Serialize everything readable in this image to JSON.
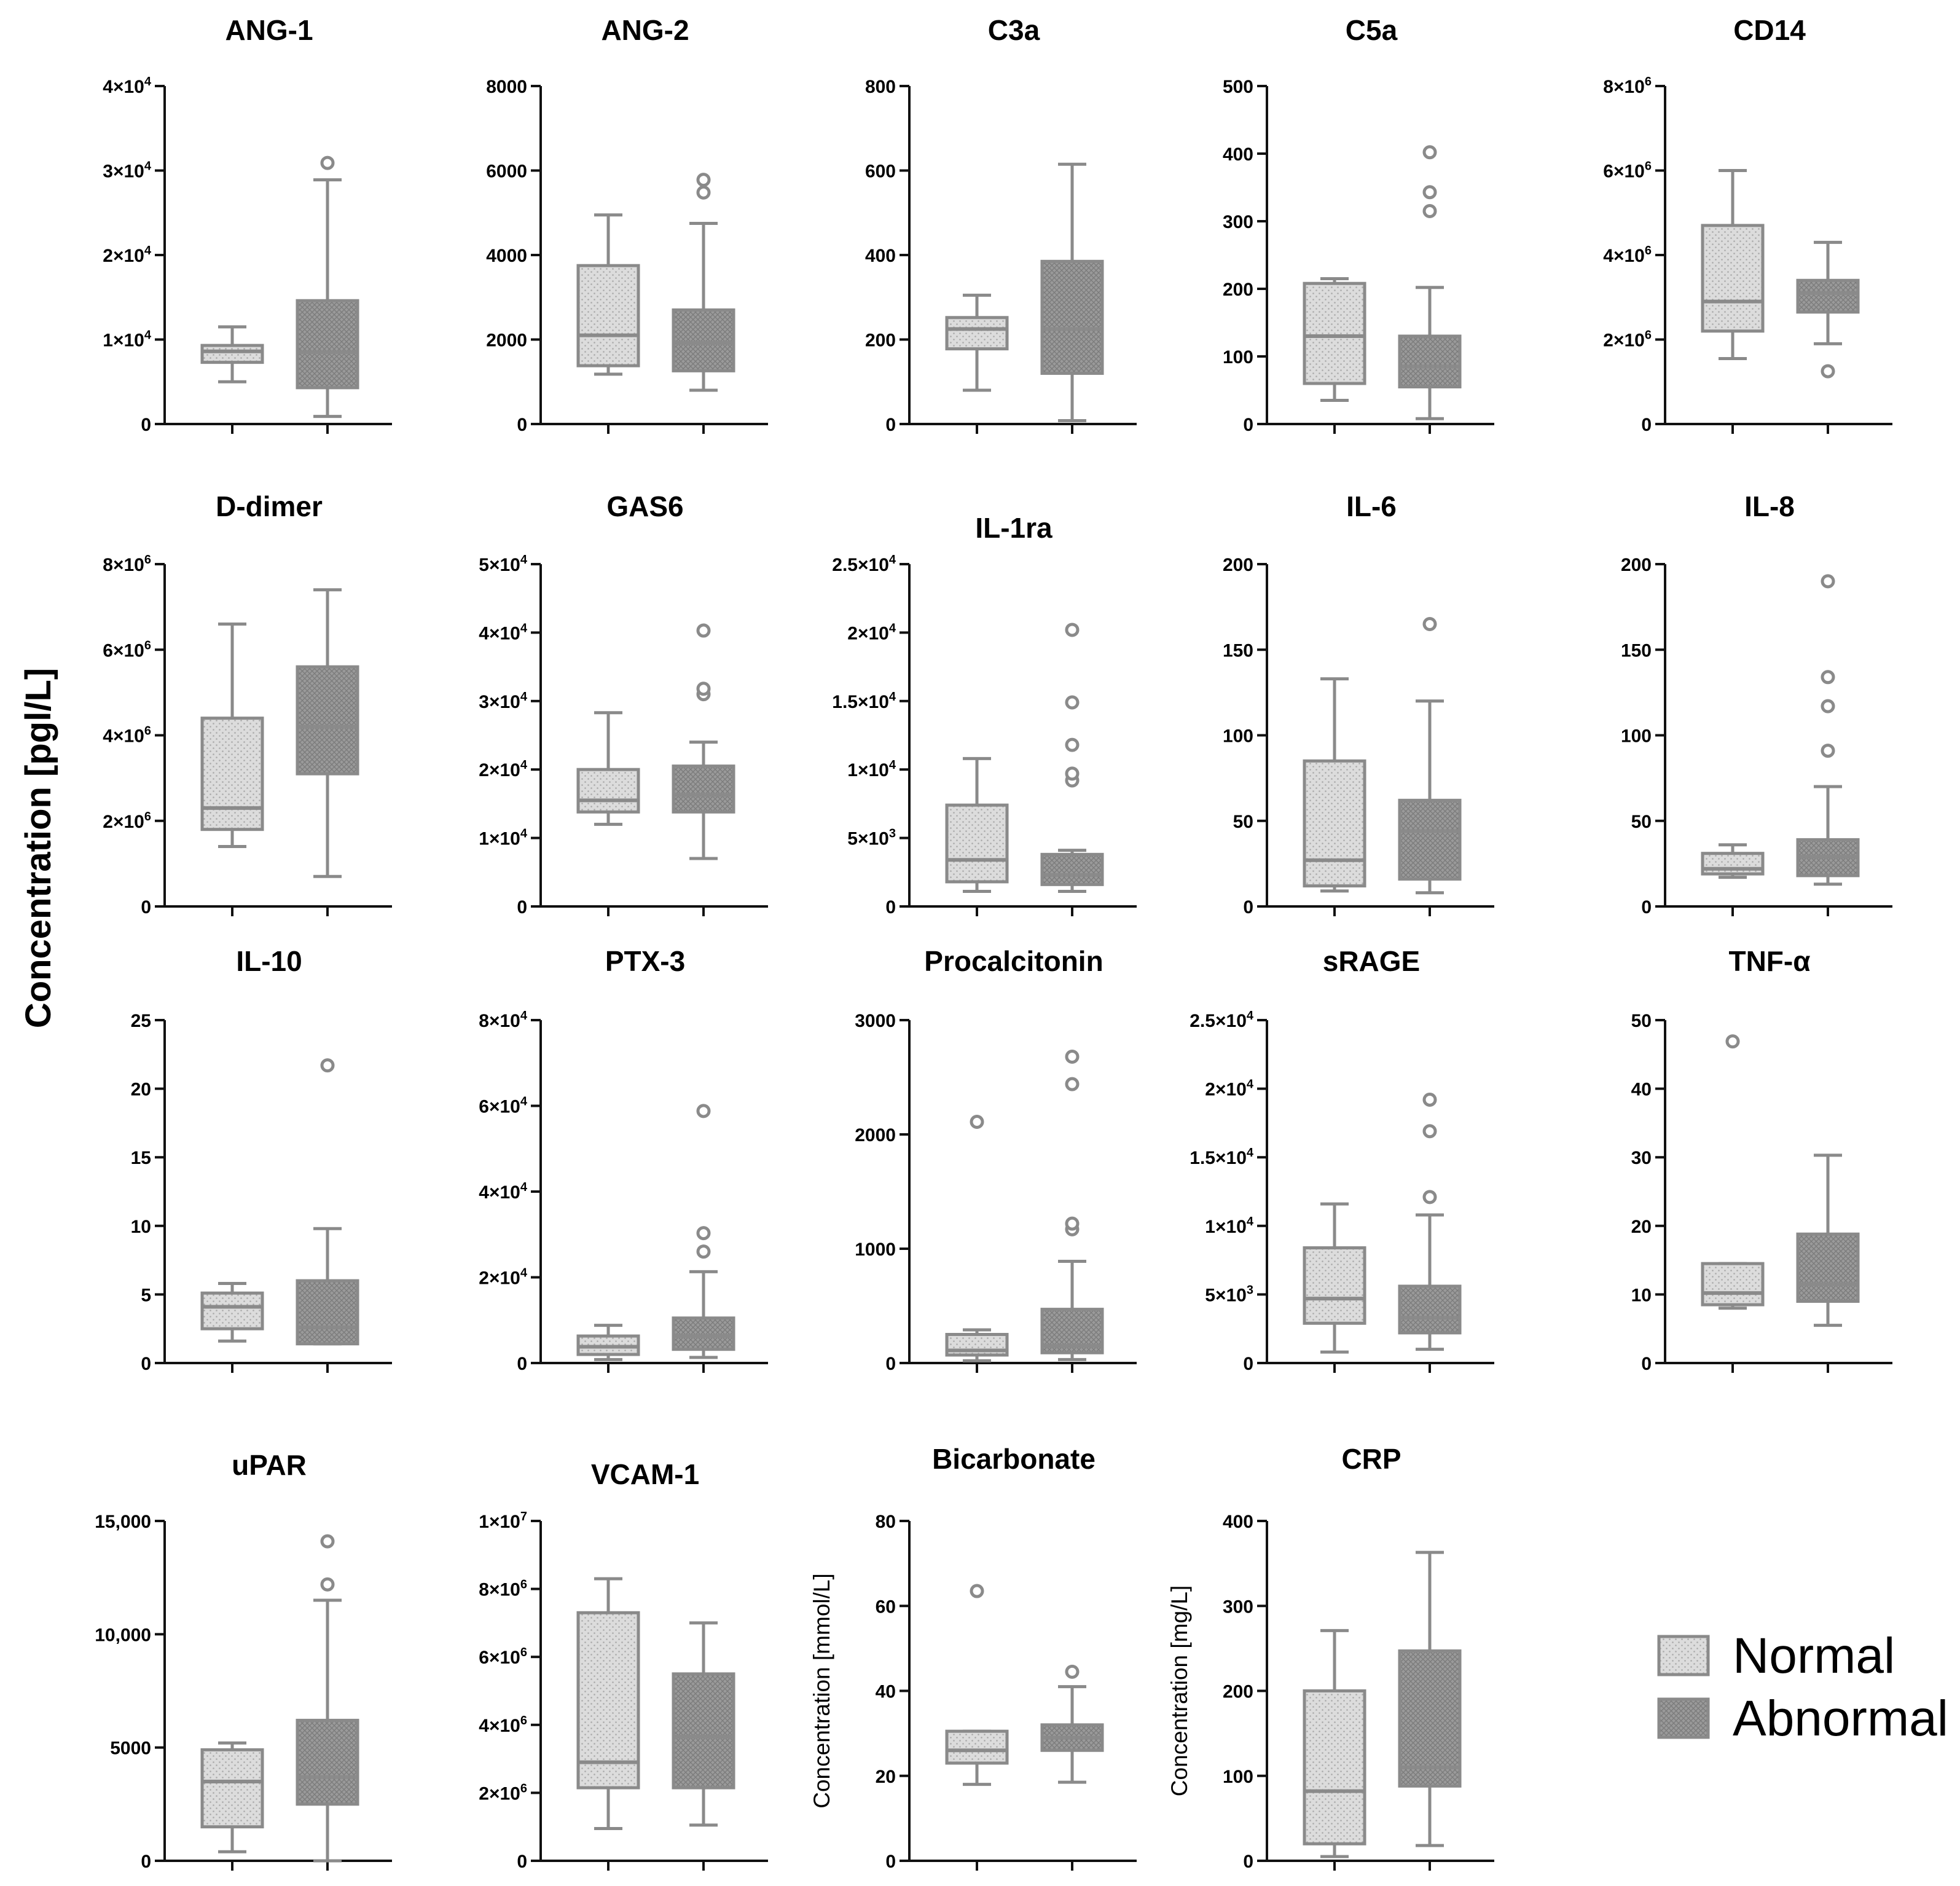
{
  "figure": {
    "y_label": "Concentration [pgl/L]",
    "legend": [
      {
        "label": "Normal",
        "fill": "#dcdcdc",
        "pattern": "dots"
      },
      {
        "label": "Abnormal",
        "fill": "#9a9a9a",
        "pattern": "cross"
      }
    ],
    "colors": {
      "axis": "#111111",
      "box_stroke": "#8a8a8a",
      "whisker": "#8a8a8a",
      "outlier": "#8a8a8a"
    }
  },
  "chart_data": [
    {
      "type": "box",
      "title": "ANG-1",
      "ylim": [
        0,
        40000
      ],
      "ticks": [
        {
          "v": 0,
          "t": "0"
        },
        {
          "v": 10000,
          "t": "1×10",
          "e": "4"
        },
        {
          "v": 20000,
          "t": "2×10",
          "e": "4"
        },
        {
          "v": 30000,
          "t": "3×10",
          "e": "4"
        },
        {
          "v": 40000,
          "t": "4×10",
          "e": "4"
        }
      ],
      "series": [
        {
          "name": "Normal",
          "min": 5000,
          "q1": 7300,
          "median": 8600,
          "q3": 9300,
          "max": 11500,
          "outliers": []
        },
        {
          "name": "Abnormal",
          "min": 900,
          "q1": 4300,
          "median": 8500,
          "q3": 14600,
          "max": 28900,
          "outliers": [
            30900
          ]
        }
      ]
    },
    {
      "type": "box",
      "title": "ANG-2",
      "ylim": [
        0,
        8000
      ],
      "ticks": [
        {
          "v": 0,
          "t": "0"
        },
        {
          "v": 2000,
          "t": "2000"
        },
        {
          "v": 4000,
          "t": "4000"
        },
        {
          "v": 6000,
          "t": "6000"
        },
        {
          "v": 8000,
          "t": "8000"
        }
      ],
      "series": [
        {
          "name": "Normal",
          "min": 1180,
          "q1": 1380,
          "median": 2100,
          "q3": 3750,
          "max": 4950,
          "outliers": []
        },
        {
          "name": "Abnormal",
          "min": 800,
          "q1": 1260,
          "median": 1920,
          "q3": 2700,
          "max": 4750,
          "outliers": [
            5480,
            5780
          ]
        }
      ]
    },
    {
      "type": "box",
      "title": "C3a",
      "ylim": [
        0,
        800
      ],
      "ticks": [
        {
          "v": 0,
          "t": "0"
        },
        {
          "v": 200,
          "t": "200"
        },
        {
          "v": 400,
          "t": "400"
        },
        {
          "v": 600,
          "t": "600"
        },
        {
          "v": 800,
          "t": "800"
        }
      ],
      "series": [
        {
          "name": "Normal",
          "min": 80,
          "q1": 178,
          "median": 225,
          "q3": 252,
          "max": 305,
          "outliers": []
        },
        {
          "name": "Abnormal",
          "min": 8,
          "q1": 120,
          "median": 225,
          "q3": 385,
          "max": 615,
          "outliers": []
        }
      ]
    },
    {
      "type": "box",
      "title": "C5a",
      "ylim": [
        0,
        500
      ],
      "ticks": [
        {
          "v": 0,
          "t": "0"
        },
        {
          "v": 100,
          "t": "100"
        },
        {
          "v": 200,
          "t": "200"
        },
        {
          "v": 300,
          "t": "300"
        },
        {
          "v": 400,
          "t": "400"
        },
        {
          "v": 500,
          "t": "500"
        }
      ],
      "series": [
        {
          "name": "Normal",
          "min": 35,
          "q1": 60,
          "median": 130,
          "q3": 208,
          "max": 215,
          "outliers": []
        },
        {
          "name": "Abnormal",
          "min": 8,
          "q1": 55,
          "median": 85,
          "q3": 130,
          "max": 202,
          "outliers": [
            315,
            343,
            402
          ]
        }
      ]
    },
    {
      "type": "box",
      "title": "CD14",
      "ylim": [
        0,
        8000000
      ],
      "ticks": [
        {
          "v": 0,
          "t": "0"
        },
        {
          "v": 2000000,
          "t": "2×10",
          "e": "6"
        },
        {
          "v": 4000000,
          "t": "4×10",
          "e": "6"
        },
        {
          "v": 6000000,
          "t": "6×10",
          "e": "6"
        },
        {
          "v": 8000000,
          "t": "8×10",
          "e": "6"
        }
      ],
      "series": [
        {
          "name": "Normal",
          "min": 1550000,
          "q1": 2200000,
          "median": 2900000,
          "q3": 4700000,
          "max": 6000000,
          "outliers": []
        },
        {
          "name": "Abnormal",
          "min": 1900000,
          "q1": 2650000,
          "median": 3100000,
          "q3": 3400000,
          "max": 4300000,
          "outliers": [
            1250000
          ]
        }
      ]
    },
    {
      "type": "box",
      "title": "D-dimer",
      "ylim": [
        0,
        8000000
      ],
      "ticks": [
        {
          "v": 0,
          "t": "0"
        },
        {
          "v": 2000000,
          "t": "2×10",
          "e": "6"
        },
        {
          "v": 4000000,
          "t": "4×10",
          "e": "6"
        },
        {
          "v": 6000000,
          "t": "6×10",
          "e": "6"
        },
        {
          "v": 8000000,
          "t": "8×10",
          "e": "6"
        }
      ],
      "series": [
        {
          "name": "Normal",
          "min": 1400000,
          "q1": 1800000,
          "median": 2300000,
          "q3": 4400000,
          "max": 6600000,
          "outliers": []
        },
        {
          "name": "Abnormal",
          "min": 700000,
          "q1": 3100000,
          "median": 4200000,
          "q3": 5600000,
          "max": 7400000,
          "outliers": []
        }
      ]
    },
    {
      "type": "box",
      "title": "GAS6",
      "ylim": [
        0,
        50000
      ],
      "ticks": [
        {
          "v": 0,
          "t": "0"
        },
        {
          "v": 10000,
          "t": "1×10",
          "e": "4"
        },
        {
          "v": 20000,
          "t": "2×10",
          "e": "4"
        },
        {
          "v": 30000,
          "t": "3×10",
          "e": "4"
        },
        {
          "v": 40000,
          "t": "4×10",
          "e": "4"
        },
        {
          "v": 50000,
          "t": "5×10",
          "e": "4"
        }
      ],
      "series": [
        {
          "name": "Normal",
          "min": 12000,
          "q1": 13800,
          "median": 15500,
          "q3": 20000,
          "max": 28300,
          "outliers": []
        },
        {
          "name": "Abnormal",
          "min": 7000,
          "q1": 13800,
          "median": 16300,
          "q3": 20500,
          "max": 24000,
          "outliers": [
            31000,
            31800,
            40300
          ]
        }
      ]
    },
    {
      "type": "box",
      "title": "IL-1ra",
      "ylim": [
        0,
        25000
      ],
      "ticks": [
        {
          "v": 0,
          "t": "0"
        },
        {
          "v": 5000,
          "t": "5×10",
          "e": "3"
        },
        {
          "v": 10000,
          "t": "1×10",
          "e": "4"
        },
        {
          "v": 15000,
          "t": "1.5×10",
          "e": "4"
        },
        {
          "v": 20000,
          "t": "2×10",
          "e": "4"
        },
        {
          "v": 25000,
          "t": "2.5×10",
          "e": "4"
        }
      ],
      "series": [
        {
          "name": "Normal",
          "min": 1100,
          "q1": 1800,
          "median": 3400,
          "q3": 7400,
          "max": 10800,
          "outliers": []
        },
        {
          "name": "Abnormal",
          "min": 1100,
          "q1": 1600,
          "median": 2300,
          "q3": 3800,
          "max": 4100,
          "outliers": [
            9200,
            9700,
            11800,
            14900,
            20200
          ]
        }
      ]
    },
    {
      "type": "box",
      "title": "IL-6",
      "ylim": [
        0,
        200
      ],
      "ticks": [
        {
          "v": 0,
          "t": "0"
        },
        {
          "v": 50,
          "t": "50"
        },
        {
          "v": 100,
          "t": "100"
        },
        {
          "v": 150,
          "t": "150"
        },
        {
          "v": 200,
          "t": "200"
        }
      ],
      "series": [
        {
          "name": "Normal",
          "min": 9,
          "q1": 12,
          "median": 27,
          "q3": 85,
          "max": 133,
          "outliers": []
        },
        {
          "name": "Abnormal",
          "min": 8,
          "q1": 16,
          "median": 44,
          "q3": 62,
          "max": 120,
          "outliers": [
            165
          ]
        }
      ]
    },
    {
      "type": "box",
      "title": "IL-8",
      "ylim": [
        0,
        200
      ],
      "ticks": [
        {
          "v": 0,
          "t": "0"
        },
        {
          "v": 50,
          "t": "50"
        },
        {
          "v": 100,
          "t": "100"
        },
        {
          "v": 150,
          "t": "150"
        },
        {
          "v": 200,
          "t": "200"
        }
      ],
      "series": [
        {
          "name": "Normal",
          "min": 17,
          "q1": 19,
          "median": 22,
          "q3": 31,
          "max": 36,
          "outliers": []
        },
        {
          "name": "Abnormal",
          "min": 13,
          "q1": 18,
          "median": 29,
          "q3": 39,
          "max": 70,
          "outliers": [
            91,
            117,
            134,
            190
          ]
        }
      ]
    },
    {
      "type": "box",
      "title": "IL-10",
      "ylim": [
        0,
        25
      ],
      "ticks": [
        {
          "v": 0,
          "t": "0"
        },
        {
          "v": 5,
          "t": "5"
        },
        {
          "v": 10,
          "t": "10"
        },
        {
          "v": 15,
          "t": "15"
        },
        {
          "v": 20,
          "t": "20"
        },
        {
          "v": 25,
          "t": "25"
        }
      ],
      "series": [
        {
          "name": "Normal",
          "min": 1.6,
          "q1": 2.5,
          "median": 4.1,
          "q3": 5.1,
          "max": 5.8,
          "outliers": []
        },
        {
          "name": "Abnormal",
          "min": 1.4,
          "q1": 1.4,
          "median": 2.6,
          "q3": 6.0,
          "max": 9.8,
          "outliers": [
            21.7
          ]
        }
      ]
    },
    {
      "type": "box",
      "title": "PTX-3",
      "ylim": [
        0,
        80000
      ],
      "ticks": [
        {
          "v": 0,
          "t": "0"
        },
        {
          "v": 20000,
          "t": "2×10",
          "e": "4"
        },
        {
          "v": 40000,
          "t": "4×10",
          "e": "4"
        },
        {
          "v": 60000,
          "t": "6×10",
          "e": "4"
        },
        {
          "v": 80000,
          "t": "8×10",
          "e": "4"
        }
      ],
      "series": [
        {
          "name": "Normal",
          "min": 800,
          "q1": 2000,
          "median": 3800,
          "q3": 6300,
          "max": 8800,
          "outliers": []
        },
        {
          "name": "Abnormal",
          "min": 1300,
          "q1": 3200,
          "median": 6300,
          "q3": 10500,
          "max": 21300,
          "outliers": [
            26000,
            30300,
            58800
          ]
        }
      ]
    },
    {
      "type": "box",
      "title": "Procalcitonin",
      "ylim": [
        0,
        3000
      ],
      "ticks": [
        {
          "v": 0,
          "t": "0"
        },
        {
          "v": 1000,
          "t": "1000"
        },
        {
          "v": 2000,
          "t": "2000"
        },
        {
          "v": 3000,
          "t": "3000"
        }
      ],
      "series": [
        {
          "name": "Normal",
          "min": 20,
          "q1": 70,
          "median": 110,
          "q3": 250,
          "max": 290,
          "outliers": [
            2110
          ]
        },
        {
          "name": "Abnormal",
          "min": 30,
          "q1": 90,
          "median": 150,
          "q3": 470,
          "max": 890,
          "outliers": [
            1170,
            1220,
            2440,
            2680
          ]
        }
      ]
    },
    {
      "type": "box",
      "title": "sRAGE",
      "ylim": [
        0,
        25000
      ],
      "ticks": [
        {
          "v": 0,
          "t": "0"
        },
        {
          "v": 5000,
          "t": "5×10",
          "e": "3"
        },
        {
          "v": 10000,
          "t": "1×10",
          "e": "4"
        },
        {
          "v": 15000,
          "t": "1.5×10",
          "e": "4"
        },
        {
          "v": 20000,
          "t": "2×10",
          "e": "4"
        },
        {
          "v": 25000,
          "t": "2.5×10",
          "e": "4"
        }
      ],
      "series": [
        {
          "name": "Normal",
          "min": 800,
          "q1": 2900,
          "median": 4700,
          "q3": 8400,
          "max": 11600,
          "outliers": []
        },
        {
          "name": "Abnormal",
          "min": 1000,
          "q1": 2200,
          "median": 3300,
          "q3": 5600,
          "max": 10800,
          "outliers": [
            12100,
            16900,
            19200
          ]
        }
      ]
    },
    {
      "type": "box",
      "title": "TNF-α",
      "ylim": [
        0,
        50
      ],
      "ticks": [
        {
          "v": 0,
          "t": "0"
        },
        {
          "v": 10,
          "t": "10"
        },
        {
          "v": 20,
          "t": "20"
        },
        {
          "v": 30,
          "t": "30"
        },
        {
          "v": 40,
          "t": "40"
        },
        {
          "v": 50,
          "t": "50"
        }
      ],
      "series": [
        {
          "name": "Normal",
          "min": 8.0,
          "q1": 8.5,
          "median": 10.2,
          "q3": 14.5,
          "max": 14.5,
          "outliers": [
            46.9
          ]
        },
        {
          "name": "Abnormal",
          "min": 5.5,
          "q1": 9.0,
          "median": 11.5,
          "q3": 18.8,
          "max": 30.3,
          "outliers": []
        }
      ]
    },
    {
      "type": "box",
      "title": "uPAR",
      "ylim": [
        0,
        15000
      ],
      "ticks": [
        {
          "v": 0,
          "t": "0"
        },
        {
          "v": 5000,
          "t": "5000"
        },
        {
          "v": 10000,
          "t": "10,000"
        },
        {
          "v": 15000,
          "t": "15,000"
        }
      ],
      "series": [
        {
          "name": "Normal",
          "min": 400,
          "q1": 1500,
          "median": 3500,
          "q3": 4900,
          "max": 5200,
          "outliers": []
        },
        {
          "name": "Abnormal",
          "min": 0,
          "q1": 2500,
          "median": 3700,
          "q3": 6200,
          "max": 11500,
          "outliers": [
            12200,
            14100
          ]
        }
      ]
    },
    {
      "type": "box",
      "title": "VCAM-1",
      "ylim": [
        0,
        10000000
      ],
      "ticks": [
        {
          "v": 0,
          "t": "0"
        },
        {
          "v": 2000000,
          "t": "2×10",
          "e": "6"
        },
        {
          "v": 4000000,
          "t": "4×10",
          "e": "6"
        },
        {
          "v": 6000000,
          "t": "6×10",
          "e": "6"
        },
        {
          "v": 8000000,
          "t": "8×10",
          "e": "6"
        },
        {
          "v": 10000000,
          "t": "1×10",
          "e": "7"
        }
      ],
      "series": [
        {
          "name": "Normal",
          "min": 950000,
          "q1": 2150000,
          "median": 2900000,
          "q3": 7300000,
          "max": 8300000,
          "outliers": []
        },
        {
          "name": "Abnormal",
          "min": 1050000,
          "q1": 2150000,
          "median": 3650000,
          "q3": 5500000,
          "max": 7000000,
          "outliers": []
        }
      ]
    },
    {
      "type": "box",
      "title": "Bicarbonate",
      "ylim": [
        0,
        80
      ],
      "ylabel": "Concentration [mmol/L]",
      "ticks": [
        {
          "v": 0,
          "t": "0"
        },
        {
          "v": 20,
          "t": "20"
        },
        {
          "v": 40,
          "t": "40"
        },
        {
          "v": 60,
          "t": "60"
        },
        {
          "v": 80,
          "t": "80"
        }
      ],
      "series": [
        {
          "name": "Normal",
          "min": 18,
          "q1": 23,
          "median": 26,
          "q3": 30.5,
          "max": 30.5,
          "outliers": [
            63.5
          ]
        },
        {
          "name": "Abnormal",
          "min": 18.5,
          "q1": 26,
          "median": 29,
          "q3": 32,
          "max": 41,
          "outliers": [
            44.5
          ]
        }
      ]
    },
    {
      "type": "box",
      "title": "CRP",
      "ylim": [
        0,
        400
      ],
      "ylabel": "Concentration [mg/L]",
      "ticks": [
        {
          "v": 0,
          "t": "0"
        },
        {
          "v": 100,
          "t": "100"
        },
        {
          "v": 200,
          "t": "200"
        },
        {
          "v": 300,
          "t": "300"
        },
        {
          "v": 400,
          "t": "400"
        }
      ],
      "series": [
        {
          "name": "Normal",
          "min": 5,
          "q1": 20,
          "median": 82,
          "q3": 200,
          "max": 271,
          "outliers": []
        },
        {
          "name": "Abnormal",
          "min": 18,
          "q1": 88,
          "median": 110,
          "q3": 247,
          "max": 363,
          "outliers": []
        }
      ]
    }
  ]
}
